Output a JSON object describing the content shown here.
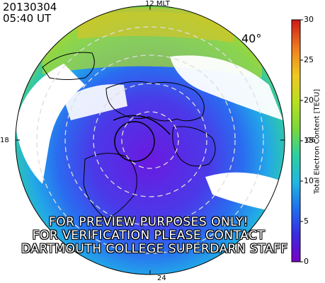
{
  "header": {
    "date": "20130304",
    "time": "05:40 UT",
    "latitude_label": "40°"
  },
  "map": {
    "mlt_labels": {
      "top": "12 MLT",
      "bottom": "24",
      "left": "18",
      "right": "06"
    },
    "colors": {
      "land_outline": "#000000",
      "grid": "#cccccc",
      "missing": "#ffffff"
    }
  },
  "colorbar": {
    "title": "Total Electron Content [TECU]",
    "min": 0,
    "max": 30,
    "ticks": [
      "0",
      "5",
      "10",
      "15",
      "20",
      "25",
      "30"
    ],
    "colors": [
      "#7a00c8",
      "#3a2ae0",
      "#1f6ff0",
      "#1fb8e0",
      "#2ad0a0",
      "#7ad83a",
      "#d8e020",
      "#f0a020",
      "#e84a1e",
      "#d01818"
    ]
  },
  "watermark": {
    "line1": "FOR PREVIEW PURPOSES ONLY!",
    "line2": "FOR VERIFICATION PLEASE CONTACT",
    "line3": "DARTMOUTH COLLEGE SUPERDARN STAFF"
  }
}
